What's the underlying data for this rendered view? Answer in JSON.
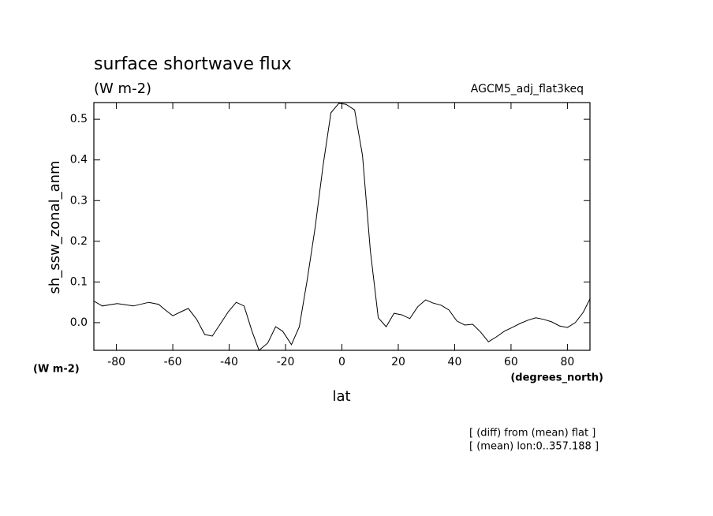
{
  "chart_data": {
    "type": "line",
    "title": "surface shortwave flux",
    "subtitle": "(W m-2)",
    "annotation": "AGCM5_adj_flat3keq",
    "ylabel": "sh_ssw_zonal_anm",
    "y_unit": "(W m-2)",
    "xlabel": "lat",
    "x_unit": "(degrees_north)",
    "notes": [
      "[ (diff) from (mean) flat ]",
      "[ (mean) lon:0..357.188 ]"
    ],
    "color": "#000000",
    "x": [
      -87.8,
      -85,
      -79.7,
      -74,
      -68.5,
      -65,
      -63,
      -60,
      -57,
      -54.5,
      -51.5,
      -48.7,
      -46,
      -43.4,
      -40.3,
      -37.5,
      -34.7,
      -31.9,
      -29.4,
      -26.3,
      -23.5,
      -21,
      -17.9,
      -15.1,
      -12.3,
      -9.5,
      -6.7,
      -3.9,
      -1.1,
      1.4,
      4.5,
      7.3,
      10.1,
      12.9,
      15.7,
      18.5,
      21.3,
      24.1,
      26.9,
      29.7,
      32.4,
      35.2,
      38.0,
      40.8,
      43.6,
      46.4,
      49.2,
      52.0,
      54.8,
      57.6,
      60.4,
      63.2,
      66.0,
      68.8,
      71.6,
      74.4,
      77.2,
      80.0,
      82.8,
      85.6,
      88.1
    ],
    "values": [
      0.052,
      0.041,
      0.047,
      0.041,
      0.05,
      0.045,
      0.033,
      0.017,
      0.027,
      0.035,
      0.008,
      -0.029,
      -0.033,
      -0.006,
      0.027,
      0.05,
      0.041,
      -0.021,
      -0.068,
      -0.05,
      -0.01,
      -0.021,
      -0.054,
      -0.01,
      0.105,
      0.233,
      0.386,
      0.516,
      0.539,
      0.537,
      0.523,
      0.411,
      0.176,
      0.012,
      -0.01,
      0.023,
      0.019,
      0.01,
      0.039,
      0.056,
      0.048,
      0.043,
      0.031,
      0.004,
      -0.006,
      -0.004,
      -0.023,
      -0.047,
      -0.035,
      -0.021,
      -0.012,
      -0.002,
      0.006,
      0.012,
      0.008,
      0.002,
      -0.008,
      -0.012,
      0.0,
      0.025,
      0.06
    ],
    "xlim": [
      -88,
      88
    ],
    "ylim": [
      -0.068,
      0.541
    ],
    "xticks": [
      -80,
      -60,
      -40,
      -20,
      0,
      20,
      40,
      60,
      80
    ],
    "yticks": [
      {
        "value": 0,
        "label": "0.0"
      },
      0.1,
      0.2,
      0.3,
      0.4,
      0.5
    ]
  }
}
